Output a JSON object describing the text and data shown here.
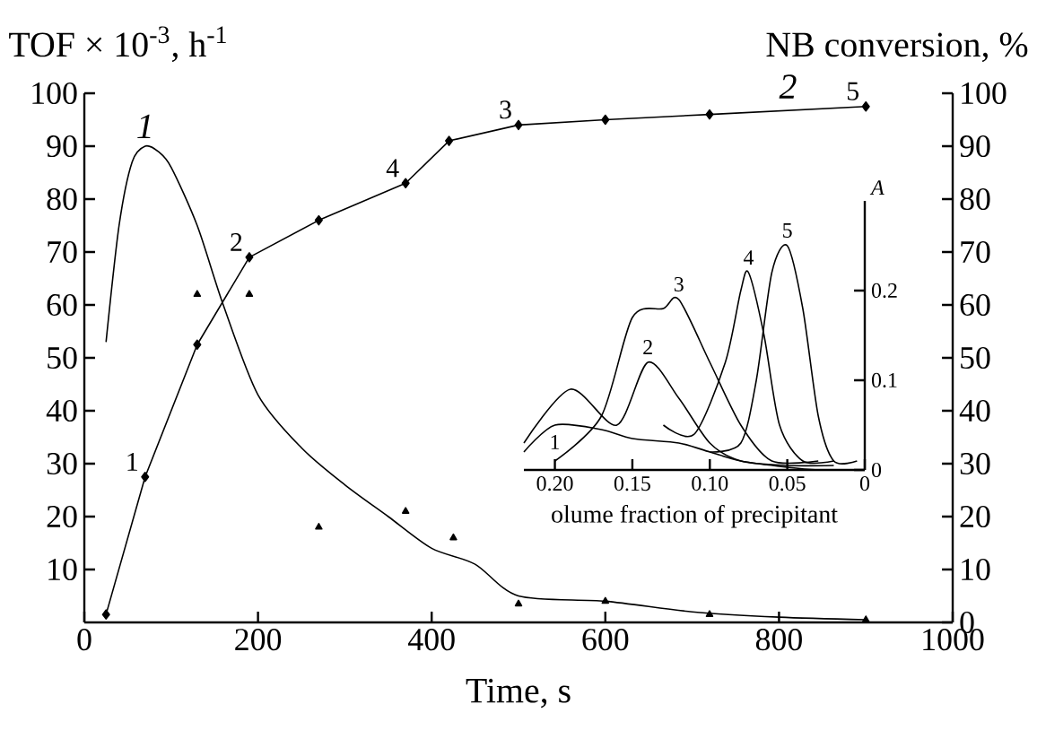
{
  "chart_data": [
    {
      "type": "line",
      "xlabel": "Time, s",
      "ylabel": "TOF × 10$^{-3}$, h$^{-1}$",
      "y2label": "NB conversion, %",
      "xlim": [
        0,
        1000
      ],
      "xticks": [
        0,
        200,
        400,
        600,
        800,
        1000
      ],
      "ylim": [
        0,
        100
      ],
      "yticks": [
        10,
        20,
        30,
        40,
        50,
        60,
        70,
        80,
        90,
        100
      ],
      "y2lim": [
        0,
        100
      ],
      "y2ticks": [
        0,
        10,
        20,
        30,
        40,
        50,
        60,
        70,
        80,
        90,
        100
      ],
      "series": [
        {
          "name": "1",
          "type": "line",
          "color": "#000000",
          "marker": "none",
          "x": [
            25,
            40,
            55,
            70,
            85,
            100,
            130,
            160,
            200,
            250,
            300,
            350,
            400,
            450,
            500,
            600,
            700,
            800,
            900
          ],
          "values": [
            53,
            75,
            87,
            90,
            89,
            86,
            75,
            60,
            43,
            33,
            26,
            20,
            14,
            11,
            5,
            4,
            2,
            1,
            0.5
          ]
        },
        {
          "type": "scatter",
          "color": "#000000",
          "marker": "triangle",
          "x": [
            130,
            190,
            270,
            370,
            425,
            500,
            600,
            720,
            900
          ],
          "values": [
            62,
            62,
            18,
            21,
            16,
            3.5,
            4,
            1.5,
            0.5
          ]
        },
        {
          "name": "2",
          "type": "line",
          "axis": "y2",
          "color": "#000000",
          "marker": "diamond",
          "x": [
            25,
            70,
            130,
            190,
            270,
            370,
            420,
            500,
            600,
            720,
            900
          ],
          "values": [
            1.5,
            27.5,
            52.5,
            69,
            76,
            83,
            91,
            94,
            95,
            96,
            97.5
          ]
        }
      ],
      "annotations": [
        {
          "text": "1",
          "x": 70,
          "y": 27.5
        },
        {
          "text": "2",
          "x": 190,
          "y": 69
        },
        {
          "text": "3",
          "x": 500,
          "y": 94
        },
        {
          "text": "4",
          "x": 370,
          "y": 83
        },
        {
          "text": "5",
          "x": 900,
          "y": 97.5
        }
      ]
    },
    {
      "type": "line",
      "xlabel": "olume fraction of precipitant",
      "y2label": "A",
      "xlim": [
        0.22,
        0
      ],
      "xticks": [
        {
          "value": 0.2,
          "label": "0.20"
        },
        0.15,
        {
          "value": 0.1,
          "label": "0.10"
        },
        0.05,
        0
      ],
      "y2lim": [
        0,
        0.3
      ],
      "y2ticks": [
        0,
        0.1,
        0.2
      ],
      "series": [
        {
          "name": "1",
          "axis": "y2",
          "color": "#000000",
          "x": [
            0.22,
            0.2,
            0.17,
            0.15,
            0.12,
            0.1,
            0.08,
            0.05,
            0.03,
            0.01
          ],
          "values": [
            0.02,
            0.05,
            0.045,
            0.035,
            0.03,
            0.02,
            0.01,
            0.003,
            0,
            0
          ]
        },
        {
          "name": "2",
          "axis": "y2",
          "color": "#000000",
          "x": [
            0.22,
            0.19,
            0.16,
            0.14,
            0.12,
            0.1,
            0.08,
            0.05,
            0.02
          ],
          "values": [
            0.03,
            0.09,
            0.05,
            0.12,
            0.08,
            0.03,
            0.01,
            0.005,
            0.005
          ]
        },
        {
          "name": "3",
          "axis": "y2",
          "color": "#000000",
          "x": [
            0.2,
            0.17,
            0.15,
            0.13,
            0.12,
            0.1,
            0.08,
            0.06,
            0.03
          ],
          "values": [
            0.01,
            0.06,
            0.17,
            0.18,
            0.19,
            0.12,
            0.05,
            0.01,
            0.01
          ]
        },
        {
          "name": "4",
          "axis": "y2",
          "color": "#000000",
          "x": [
            0.13,
            0.11,
            0.09,
            0.08,
            0.075,
            0.065,
            0.055,
            0.04,
            0.02
          ],
          "values": [
            0.05,
            0.04,
            0.12,
            0.2,
            0.22,
            0.15,
            0.05,
            0.01,
            0.01
          ]
        },
        {
          "name": "5",
          "axis": "y2",
          "color": "#000000",
          "x": [
            0.1,
            0.08,
            0.07,
            0.06,
            0.05,
            0.04,
            0.03,
            0.02,
            0.005
          ],
          "values": [
            0.02,
            0.03,
            0.1,
            0.22,
            0.25,
            0.18,
            0.06,
            0.01,
            0.01
          ]
        }
      ]
    }
  ]
}
